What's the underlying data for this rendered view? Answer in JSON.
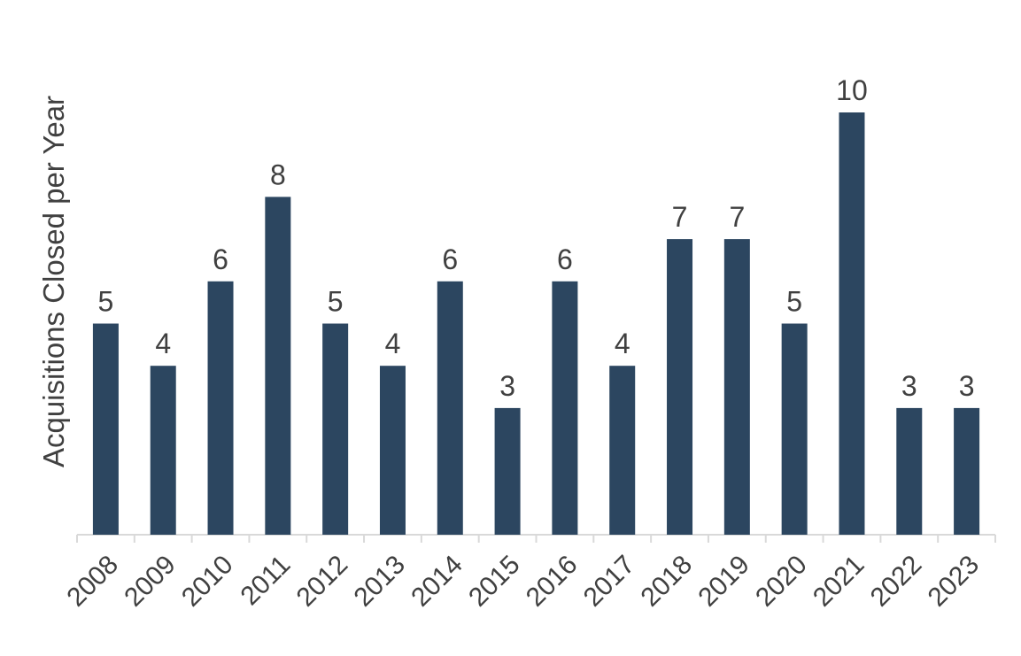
{
  "chart_data": {
    "type": "bar",
    "y_label": "Acquisitions Closed per Year",
    "categories": [
      "2008",
      "2009",
      "2010",
      "2011",
      "2012",
      "2013",
      "2014",
      "2015",
      "2016",
      "2017",
      "2018",
      "2019",
      "2020",
      "2021",
      "2022",
      "2023"
    ],
    "values": [
      5,
      4,
      6,
      8,
      5,
      4,
      6,
      3,
      6,
      4,
      7,
      7,
      5,
      10,
      3,
      3
    ],
    "color": "#2c4660"
  }
}
